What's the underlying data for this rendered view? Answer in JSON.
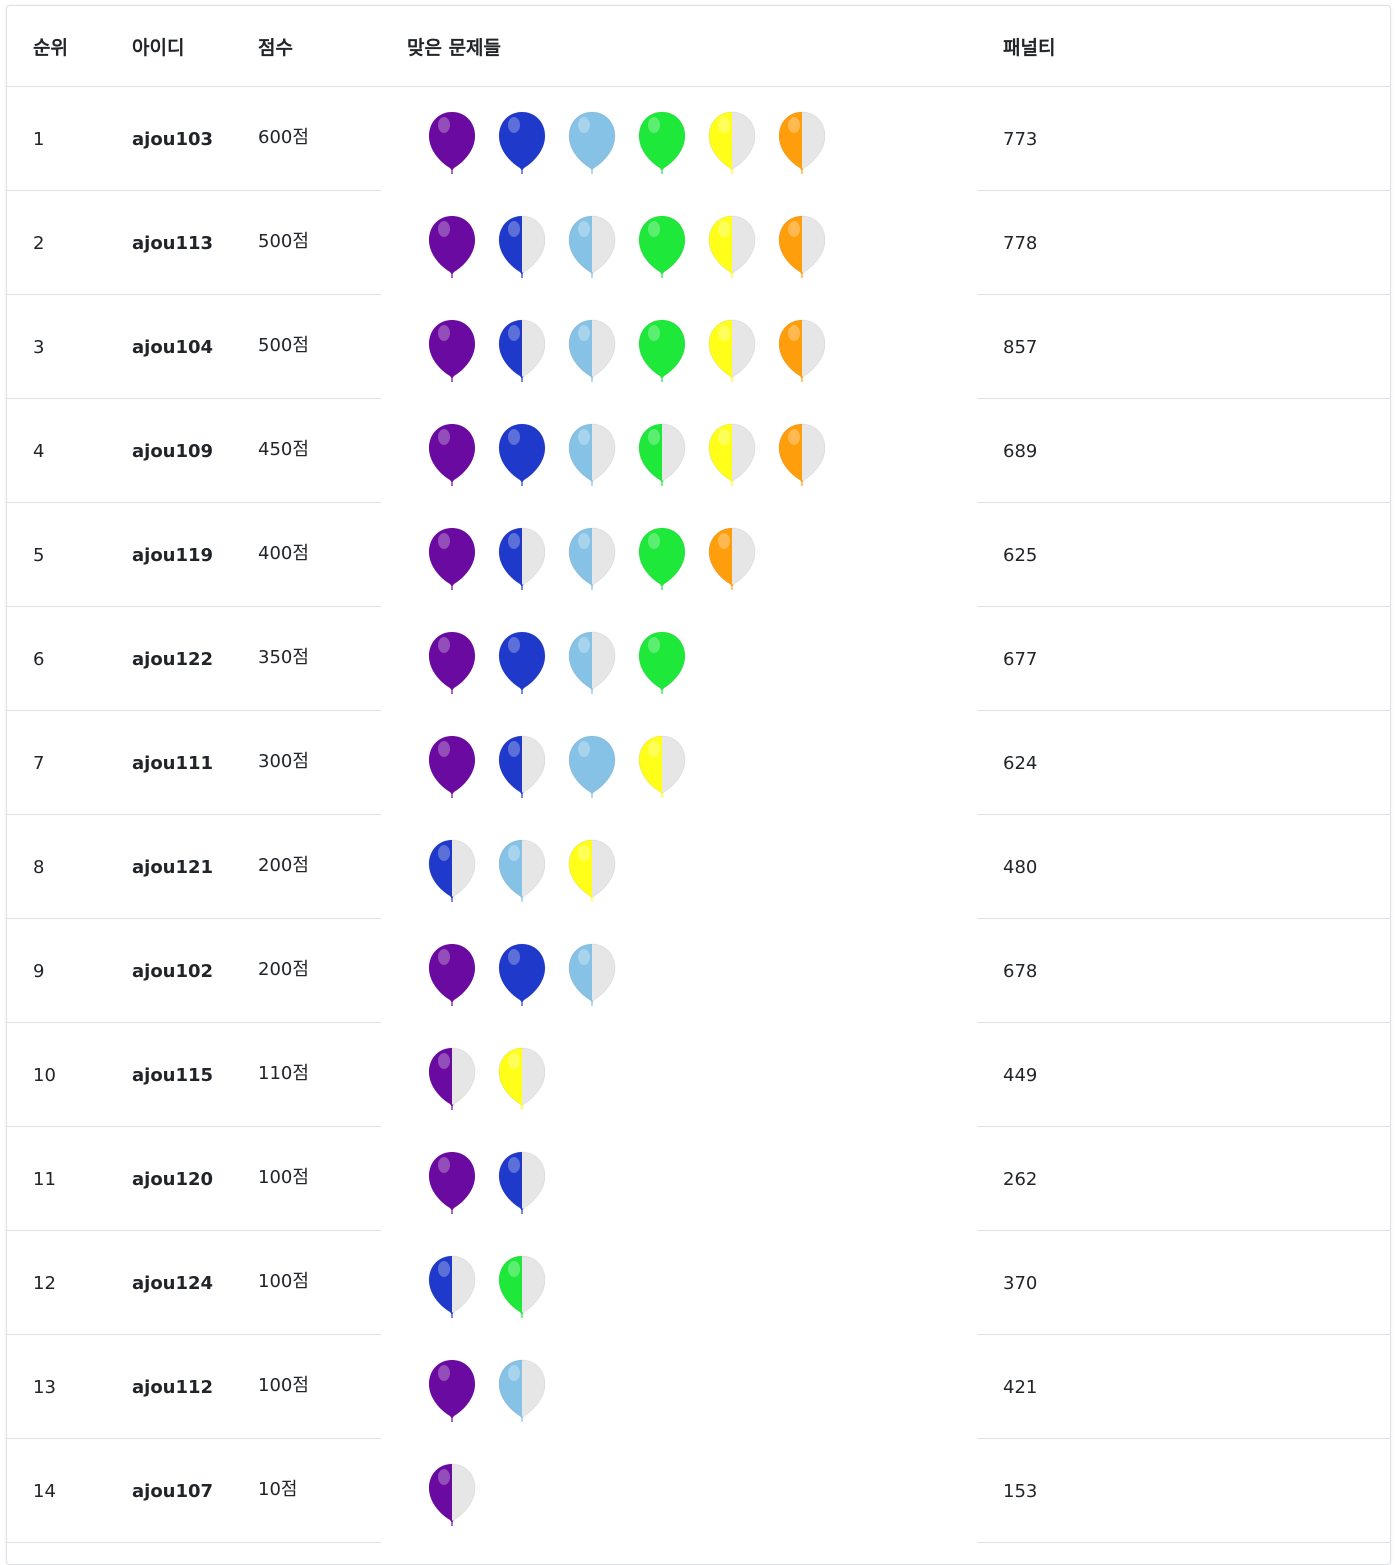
{
  "headers": {
    "rank": "순위",
    "id": "아이디",
    "score": "점수",
    "solved": "맞은 문제들",
    "penalty": "패널티"
  },
  "colors": {
    "purple": "#6a0aa0",
    "blue": "#1f3acb",
    "skyblue": "#86c2e6",
    "green": "#1ee83a",
    "yellow": "#ffff1a",
    "orange": "#ff9e0d",
    "empty": "#e6e6e6"
  },
  "rows": [
    {
      "rank": "1",
      "id": "ajou103",
      "score": "600점",
      "penalty": "773",
      "balloons": [
        [
          "purple",
          "full"
        ],
        [
          "blue",
          "full"
        ],
        [
          "skyblue",
          "full"
        ],
        [
          "green",
          "full"
        ],
        [
          "yellow",
          "half"
        ],
        [
          "orange",
          "half"
        ]
      ]
    },
    {
      "rank": "2",
      "id": "ajou113",
      "score": "500점",
      "penalty": "778",
      "balloons": [
        [
          "purple",
          "full"
        ],
        [
          "blue",
          "half"
        ],
        [
          "skyblue",
          "half"
        ],
        [
          "green",
          "full"
        ],
        [
          "yellow",
          "half"
        ],
        [
          "orange",
          "half"
        ]
      ]
    },
    {
      "rank": "3",
      "id": "ajou104",
      "score": "500점",
      "penalty": "857",
      "balloons": [
        [
          "purple",
          "full"
        ],
        [
          "blue",
          "half"
        ],
        [
          "skyblue",
          "half"
        ],
        [
          "green",
          "full"
        ],
        [
          "yellow",
          "half"
        ],
        [
          "orange",
          "half"
        ]
      ]
    },
    {
      "rank": "4",
      "id": "ajou109",
      "score": "450점",
      "penalty": "689",
      "balloons": [
        [
          "purple",
          "full"
        ],
        [
          "blue",
          "full"
        ],
        [
          "skyblue",
          "half"
        ],
        [
          "green",
          "half"
        ],
        [
          "yellow",
          "half"
        ],
        [
          "orange",
          "half"
        ]
      ]
    },
    {
      "rank": "5",
      "id": "ajou119",
      "score": "400점",
      "penalty": "625",
      "balloons": [
        [
          "purple",
          "full"
        ],
        [
          "blue",
          "half"
        ],
        [
          "skyblue",
          "half"
        ],
        [
          "green",
          "full"
        ],
        [
          "orange",
          "half"
        ]
      ]
    },
    {
      "rank": "6",
      "id": "ajou122",
      "score": "350점",
      "penalty": "677",
      "balloons": [
        [
          "purple",
          "full"
        ],
        [
          "blue",
          "full"
        ],
        [
          "skyblue",
          "half"
        ],
        [
          "green",
          "full"
        ]
      ]
    },
    {
      "rank": "7",
      "id": "ajou111",
      "score": "300점",
      "penalty": "624",
      "balloons": [
        [
          "purple",
          "full"
        ],
        [
          "blue",
          "half"
        ],
        [
          "skyblue",
          "full"
        ],
        [
          "yellow",
          "half"
        ]
      ]
    },
    {
      "rank": "8",
      "id": "ajou121",
      "score": "200점",
      "penalty": "480",
      "balloons": [
        [
          "blue",
          "half"
        ],
        [
          "skyblue",
          "half"
        ],
        [
          "yellow",
          "half"
        ]
      ]
    },
    {
      "rank": "9",
      "id": "ajou102",
      "score": "200점",
      "penalty": "678",
      "balloons": [
        [
          "purple",
          "full"
        ],
        [
          "blue",
          "full"
        ],
        [
          "skyblue",
          "half"
        ]
      ]
    },
    {
      "rank": "10",
      "id": "ajou115",
      "score": "110점",
      "penalty": "449",
      "balloons": [
        [
          "purple",
          "half"
        ],
        [
          "yellow",
          "half"
        ]
      ]
    },
    {
      "rank": "11",
      "id": "ajou120",
      "score": "100점",
      "penalty": "262",
      "balloons": [
        [
          "purple",
          "full"
        ],
        [
          "blue",
          "half"
        ]
      ]
    },
    {
      "rank": "12",
      "id": "ajou124",
      "score": "100점",
      "penalty": "370",
      "balloons": [
        [
          "blue",
          "half"
        ],
        [
          "green",
          "half"
        ]
      ]
    },
    {
      "rank": "13",
      "id": "ajou112",
      "score": "100점",
      "penalty": "421",
      "balloons": [
        [
          "purple",
          "full"
        ],
        [
          "skyblue",
          "half"
        ]
      ]
    },
    {
      "rank": "14",
      "id": "ajou107",
      "score": "10점",
      "penalty": "153",
      "balloons": [
        [
          "purple",
          "half"
        ]
      ]
    }
  ]
}
